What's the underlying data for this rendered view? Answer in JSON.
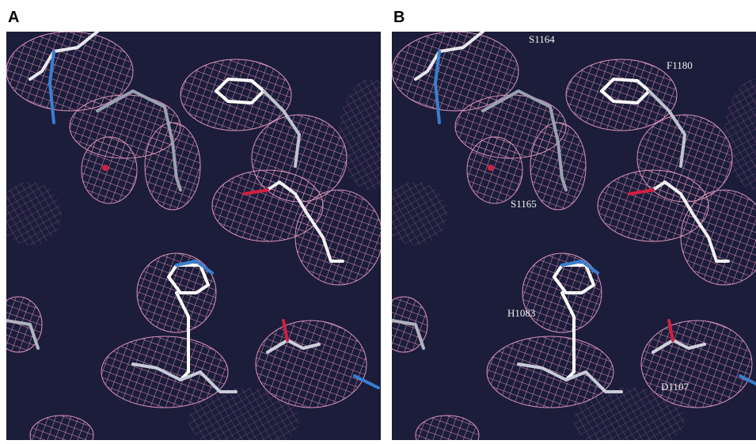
{
  "panels": [
    {
      "label": "A"
    },
    {
      "label": "B",
      "annotations": [
        "S1164",
        "F1180",
        "S1165",
        "H1083",
        "D1107"
      ]
    }
  ]
}
